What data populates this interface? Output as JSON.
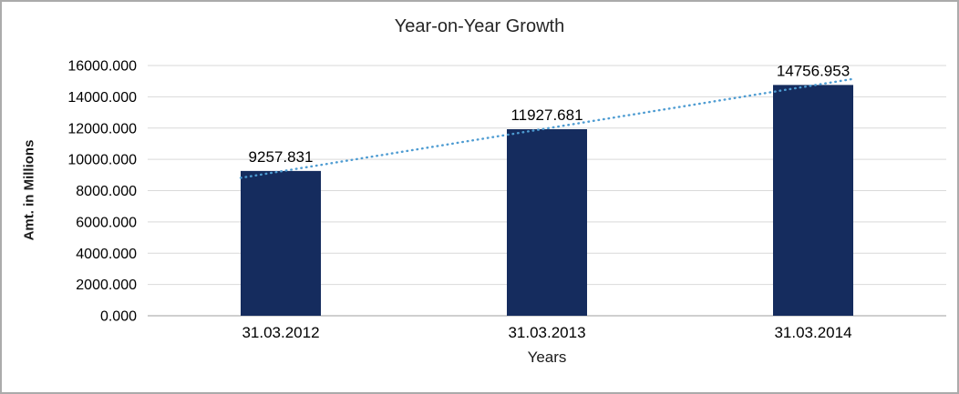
{
  "chart_data": {
    "type": "bar",
    "title": "Year-on-Year Growth",
    "xlabel": "Years",
    "ylabel": "Amt. in Millions",
    "categories": [
      "31.03.2012",
      "31.03.2013",
      "31.03.2014"
    ],
    "values": [
      9257.831,
      11927.681,
      14756.953
    ],
    "data_labels": [
      "9257.831",
      "11927.681",
      "14756.953"
    ],
    "ylim": [
      0,
      16000
    ],
    "ytick_step": 2000,
    "ytick_labels": [
      "0.000",
      "2000.000",
      "4000.000",
      "6000.000",
      "8000.000",
      "10000.000",
      "12000.000",
      "14000.000",
      "16000.000"
    ],
    "grid": true,
    "legend": "none",
    "trendline": {
      "type": "linear",
      "style": "dotted",
      "color": "#4E9CD2"
    },
    "colors": {
      "bar": "#152C5E",
      "gridline": "#D9D9D9",
      "axis_line": "#BFBFBF",
      "text": "#000000",
      "border": "#ABABAB",
      "background": "#FFFFFF"
    }
  }
}
